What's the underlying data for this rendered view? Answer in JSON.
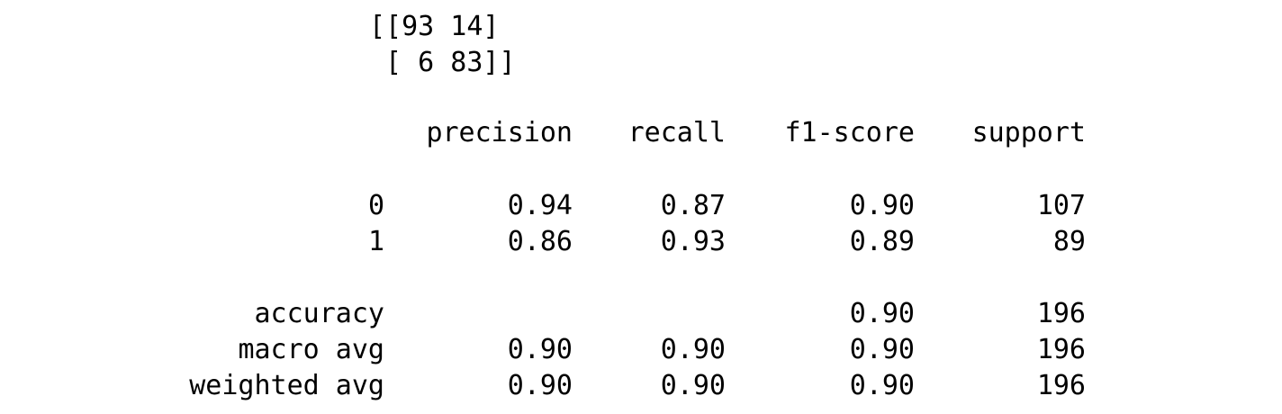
{
  "confusion_matrix": {
    "line1": "[[93 14]",
    "line2": " [ 6 83]]"
  },
  "report": {
    "headers": [
      "precision",
      "recall",
      "f1-score",
      "support"
    ],
    "rows": [
      {
        "label": "0",
        "precision": "0.94",
        "recall": "0.87",
        "f1": "0.90",
        "support": "107"
      },
      {
        "label": "1",
        "precision": "0.86",
        "recall": "0.93",
        "f1": "0.89",
        "support": "89"
      }
    ],
    "accuracy": {
      "label": "accuracy",
      "f1": "0.90",
      "support": "196"
    },
    "macro": {
      "label": "macro avg",
      "precision": "0.90",
      "recall": "0.90",
      "f1": "0.90",
      "support": "196"
    },
    "weighted": {
      "label": "weighted avg",
      "precision": "0.90",
      "recall": "0.90",
      "f1": "0.90",
      "support": "196"
    }
  }
}
